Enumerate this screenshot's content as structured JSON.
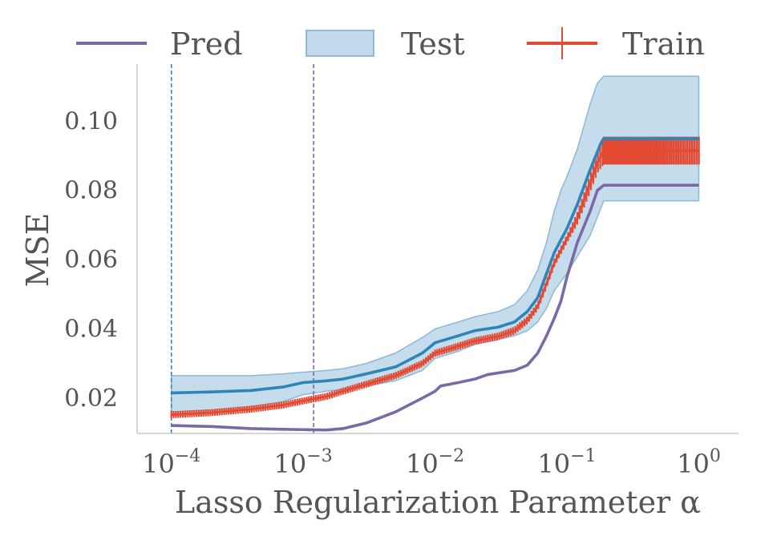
{
  "chart_data": {
    "type": "line",
    "title": "",
    "xlabel": "Lasso Regularization Parameter α",
    "ylabel": "MSE",
    "xscale": "log",
    "xlim": [
      5.5e-05,
      2.0
    ],
    "ylim": [
      0.0098,
      0.1165
    ],
    "x_ticks": [
      0.0001,
      0.001,
      0.01,
      0.1,
      1
    ],
    "x_tick_labels": [
      {
        "base": "10",
        "exp": "−4"
      },
      {
        "base": "10",
        "exp": "−3"
      },
      {
        "base": "10",
        "exp": "−2"
      },
      {
        "base": "10",
        "exp": "−1"
      },
      {
        "base": "10",
        "exp": "0"
      }
    ],
    "y_ticks": [
      0.02,
      0.04,
      0.06,
      0.08,
      0.1
    ],
    "y_tick_labels": [
      "0.02",
      "0.04",
      "0.06",
      "0.08",
      "0.10"
    ],
    "grid": false,
    "legend_position": "top",
    "legend": [
      {
        "label": "Pred",
        "kind": "line"
      },
      {
        "label": "Test",
        "kind": "band"
      },
      {
        "label": "Train",
        "kind": "errorline"
      }
    ],
    "series": [
      {
        "name": "Pred",
        "color": "#7b68a6",
        "points": [
          [
            0.0001,
            0.0121
          ],
          [
            0.0002,
            0.0118
          ],
          [
            0.0004,
            0.0112
          ],
          [
            0.0007,
            0.011
          ],
          [
            0.001,
            0.0109
          ],
          [
            0.0015,
            0.0108
          ],
          [
            0.002,
            0.0112
          ],
          [
            0.003,
            0.0128
          ],
          [
            0.005,
            0.016
          ],
          [
            0.008,
            0.02
          ],
          [
            0.01,
            0.022
          ],
          [
            0.011,
            0.0235
          ],
          [
            0.015,
            0.0245
          ],
          [
            0.02,
            0.0255
          ],
          [
            0.025,
            0.0268
          ],
          [
            0.04,
            0.028
          ],
          [
            0.05,
            0.0295
          ],
          [
            0.06,
            0.033
          ],
          [
            0.07,
            0.038
          ],
          [
            0.08,
            0.043
          ],
          [
            0.09,
            0.048
          ],
          [
            0.1,
            0.055
          ],
          [
            0.12,
            0.065
          ],
          [
            0.15,
            0.074
          ],
          [
            0.17,
            0.08
          ],
          [
            0.19,
            0.0815
          ],
          [
            0.25,
            0.0815
          ],
          [
            0.5,
            0.0815
          ],
          [
            1.0,
            0.0815
          ]
        ]
      },
      {
        "name": "Test",
        "color": "#2f84b9",
        "band_color": "#a6c9e2",
        "points": [
          [
            0.0001,
            0.0215
          ],
          [
            0.0002,
            0.0218
          ],
          [
            0.0004,
            0.0222
          ],
          [
            0.0007,
            0.0232
          ],
          [
            0.001,
            0.0245
          ],
          [
            0.0015,
            0.025
          ],
          [
            0.002,
            0.0255
          ],
          [
            0.003,
            0.027
          ],
          [
            0.005,
            0.029
          ],
          [
            0.008,
            0.033
          ],
          [
            0.01,
            0.036
          ],
          [
            0.015,
            0.038
          ],
          [
            0.02,
            0.0395
          ],
          [
            0.03,
            0.0405
          ],
          [
            0.04,
            0.042
          ],
          [
            0.05,
            0.045
          ],
          [
            0.06,
            0.049
          ],
          [
            0.07,
            0.056
          ],
          [
            0.08,
            0.062
          ],
          [
            0.1,
            0.069
          ],
          [
            0.12,
            0.076
          ],
          [
            0.15,
            0.086
          ],
          [
            0.18,
            0.0935
          ],
          [
            0.19,
            0.095
          ],
          [
            0.25,
            0.095
          ],
          [
            0.5,
            0.095
          ],
          [
            1.0,
            0.095
          ]
        ],
        "band_upper": [
          [
            0.0001,
            0.0265
          ],
          [
            0.0002,
            0.0265
          ],
          [
            0.0004,
            0.0265
          ],
          [
            0.0007,
            0.027
          ],
          [
            0.001,
            0.0275
          ],
          [
            0.0015,
            0.028
          ],
          [
            0.002,
            0.0285
          ],
          [
            0.003,
            0.03
          ],
          [
            0.005,
            0.033
          ],
          [
            0.008,
            0.0375
          ],
          [
            0.01,
            0.04
          ],
          [
            0.015,
            0.042
          ],
          [
            0.02,
            0.0435
          ],
          [
            0.03,
            0.045
          ],
          [
            0.04,
            0.047
          ],
          [
            0.05,
            0.051
          ],
          [
            0.06,
            0.057
          ],
          [
            0.07,
            0.065
          ],
          [
            0.08,
            0.074
          ],
          [
            0.09,
            0.08
          ],
          [
            0.1,
            0.084
          ],
          [
            0.12,
            0.092
          ],
          [
            0.15,
            0.105
          ],
          [
            0.17,
            0.111
          ],
          [
            0.19,
            0.113
          ],
          [
            0.25,
            0.113
          ],
          [
            0.5,
            0.113
          ],
          [
            1.0,
            0.113
          ]
        ],
        "band_lower": [
          [
            0.0001,
            0.016
          ],
          [
            0.0002,
            0.0165
          ],
          [
            0.0004,
            0.0175
          ],
          [
            0.0007,
            0.019
          ],
          [
            0.001,
            0.021
          ],
          [
            0.0015,
            0.022
          ],
          [
            0.002,
            0.0225
          ],
          [
            0.003,
            0.0235
          ],
          [
            0.005,
            0.025
          ],
          [
            0.008,
            0.028
          ],
          [
            0.01,
            0.0315
          ],
          [
            0.015,
            0.0335
          ],
          [
            0.02,
            0.0355
          ],
          [
            0.03,
            0.037
          ],
          [
            0.04,
            0.038
          ],
          [
            0.05,
            0.0395
          ],
          [
            0.06,
            0.042
          ],
          [
            0.07,
            0.046
          ],
          [
            0.08,
            0.051
          ],
          [
            0.1,
            0.056
          ],
          [
            0.12,
            0.061
          ],
          [
            0.15,
            0.067
          ],
          [
            0.19,
            0.077
          ],
          [
            0.25,
            0.077
          ],
          [
            0.5,
            0.077
          ],
          [
            1.0,
            0.077
          ]
        ]
      },
      {
        "name": "Train",
        "color": "#e24a33",
        "error_halfwidth": [
          [
            0.0001,
            0.001
          ],
          [
            0.01,
            0.001
          ],
          [
            0.1,
            0.0012
          ],
          [
            0.17,
            0.003
          ],
          [
            0.19,
            0.004
          ],
          [
            1.0,
            0.004
          ]
        ],
        "points": [
          [
            0.0001,
            0.0152
          ],
          [
            0.0002,
            0.0158
          ],
          [
            0.0004,
            0.0168
          ],
          [
            0.0007,
            0.018
          ],
          [
            0.001,
            0.0192
          ],
          [
            0.0015,
            0.0205
          ],
          [
            0.002,
            0.022
          ],
          [
            0.003,
            0.024
          ],
          [
            0.005,
            0.0265
          ],
          [
            0.008,
            0.03
          ],
          [
            0.01,
            0.033
          ],
          [
            0.015,
            0.035
          ],
          [
            0.02,
            0.0365
          ],
          [
            0.03,
            0.0378
          ],
          [
            0.04,
            0.0395
          ],
          [
            0.05,
            0.0425
          ],
          [
            0.06,
            0.0465
          ],
          [
            0.07,
            0.053
          ],
          [
            0.08,
            0.059
          ],
          [
            0.1,
            0.066
          ],
          [
            0.12,
            0.072
          ],
          [
            0.15,
            0.082
          ],
          [
            0.17,
            0.088
          ],
          [
            0.19,
            0.0915
          ],
          [
            0.25,
            0.0915
          ],
          [
            0.5,
            0.0915
          ],
          [
            1.0,
            0.0915
          ]
        ]
      }
    ],
    "vlines": [
      {
        "x": 0.0001,
        "color": "#2f84b9",
        "style": "dashed"
      },
      {
        "x": 0.0012,
        "color": "#7b68a6",
        "style": "dashed"
      }
    ]
  }
}
